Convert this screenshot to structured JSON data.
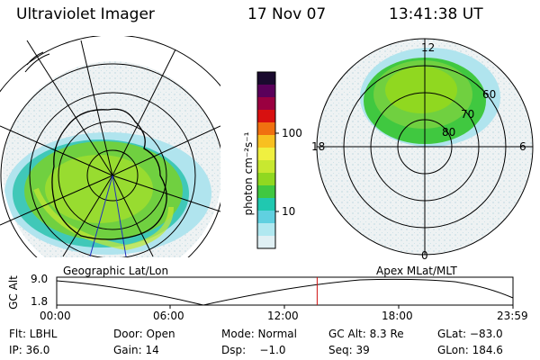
{
  "header": {
    "instrument": "Ultraviolet Imager",
    "date": "17 Nov 07",
    "time": "13:41:38 UT"
  },
  "left_panel": {
    "caption": "Geographic Lat/Lon"
  },
  "right_panel": {
    "caption": "Apex MLat/MLT",
    "mlt_labels": [
      "12",
      "18",
      "6",
      "0"
    ],
    "mlat_labels": [
      "60",
      "70",
      "80"
    ]
  },
  "colorbar": {
    "unit_label": "photon cm⁻²s⁻¹",
    "tick_labels": [
      "100",
      "10"
    ],
    "colors": [
      "#1a0a2e",
      "#5a005a",
      "#9a0040",
      "#d81010",
      "#f07010",
      "#f8c020",
      "#f0f040",
      "#c8e830",
      "#90d820",
      "#40c840",
      "#20c8b0",
      "#60d0e0",
      "#b0e8f0",
      "#e0f0f4"
    ]
  },
  "altitude_plot": {
    "ylabel": "GC Alt",
    "y_ticks": [
      "9.0",
      "1.8"
    ],
    "x_ticks": [
      "00:00",
      "06:00",
      "12:00",
      "18:00",
      "23:59"
    ],
    "current_time_hours": 13.69,
    "marker_color": "#d01010"
  },
  "status": {
    "row1": [
      {
        "label": "Flt: LBHL"
      },
      {
        "label": "Door: Open"
      },
      {
        "label": "Mode: Normal"
      },
      {
        "label": "GC Alt: 8.3 Re"
      },
      {
        "label": "GLat: −83.0"
      }
    ],
    "row2": [
      {
        "label": "IP: 36.0"
      },
      {
        "label": "Gain: 14"
      },
      {
        "label": "Dsp:    −1.0"
      },
      {
        "label": "Seq: 39"
      },
      {
        "label": "GLon: 184.6"
      }
    ]
  }
}
